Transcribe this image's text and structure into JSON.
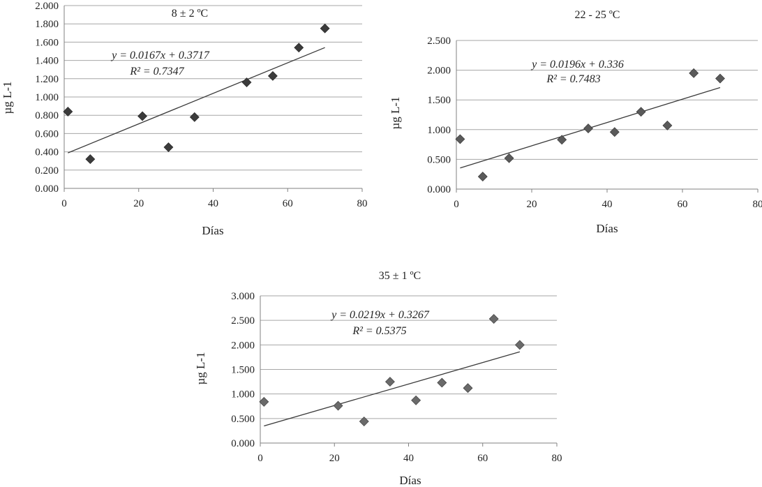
{
  "chart_data": [
    {
      "type": "scatter",
      "title": "8 ± 2 ºC",
      "xlabel": "Días",
      "ylabel": "µg L-1",
      "xlim": [
        0,
        80
      ],
      "ylim": [
        0,
        2.0
      ],
      "x_ticks": [
        "0",
        "20",
        "40",
        "60",
        "80"
      ],
      "y_ticks": [
        "0.000",
        "0.200",
        "0.400",
        "0.600",
        "0.800",
        "1.000",
        "1.200",
        "1.400",
        "1.600",
        "1.800",
        "2.000"
      ],
      "grid": true,
      "points": [
        {
          "x": 1,
          "y": 0.84
        },
        {
          "x": 7,
          "y": 0.32
        },
        {
          "x": 21,
          "y": 0.79
        },
        {
          "x": 28,
          "y": 0.45
        },
        {
          "x": 35,
          "y": 0.78
        },
        {
          "x": 49,
          "y": 1.16
        },
        {
          "x": 56,
          "y": 1.23
        },
        {
          "x": 63,
          "y": 1.54
        },
        {
          "x": 70,
          "y": 1.75
        }
      ],
      "trendline": {
        "slope": 0.0167,
        "intercept": 0.3717,
        "x_range": [
          1,
          70
        ]
      },
      "equation": "y = 0.0167x + 0.3717",
      "r2_label": "R² = 0.7347"
    },
    {
      "type": "scatter",
      "title": "22 - 25 ºC",
      "xlabel": "Días",
      "ylabel": "µg L-1",
      "xlim": [
        0,
        80
      ],
      "ylim": [
        0,
        2.5
      ],
      "x_ticks": [
        "0",
        "20",
        "40",
        "60",
        "80"
      ],
      "y_ticks": [
        "0.000",
        "0.500",
        "1.000",
        "1.500",
        "2.000",
        "2.500"
      ],
      "grid": true,
      "points": [
        {
          "x": 1,
          "y": 0.84
        },
        {
          "x": 7,
          "y": 0.21
        },
        {
          "x": 14,
          "y": 0.52
        },
        {
          "x": 28,
          "y": 0.83
        },
        {
          "x": 35,
          "y": 1.02
        },
        {
          "x": 42,
          "y": 0.96
        },
        {
          "x": 49,
          "y": 1.3
        },
        {
          "x": 56,
          "y": 1.07
        },
        {
          "x": 63,
          "y": 1.95
        },
        {
          "x": 70,
          "y": 1.86
        }
      ],
      "trendline": {
        "slope": 0.0196,
        "intercept": 0.336,
        "x_range": [
          1,
          70
        ]
      },
      "equation": "y = 0.0196x + 0.336",
      "r2_label": "R² = 0.7483"
    },
    {
      "type": "scatter",
      "title": "35 ± 1 ºC",
      "xlabel": "Días",
      "ylabel": "µg L-1",
      "xlim": [
        0,
        80
      ],
      "ylim": [
        0,
        3.0
      ],
      "x_ticks": [
        "0",
        "20",
        "40",
        "60",
        "80"
      ],
      "y_ticks": [
        "0.000",
        "0.500",
        "1.000",
        "1.500",
        "2.000",
        "2.500",
        "3.000"
      ],
      "grid": true,
      "points": [
        {
          "x": 1,
          "y": 0.84
        },
        {
          "x": 21,
          "y": 0.76
        },
        {
          "x": 28,
          "y": 0.44
        },
        {
          "x": 35,
          "y": 1.25
        },
        {
          "x": 42,
          "y": 0.87
        },
        {
          "x": 49,
          "y": 1.23
        },
        {
          "x": 56,
          "y": 1.12
        },
        {
          "x": 63,
          "y": 2.53
        },
        {
          "x": 70,
          "y": 2.0
        }
      ],
      "trendline": {
        "slope": 0.0219,
        "intercept": 0.3267,
        "x_range": [
          1,
          70
        ]
      },
      "equation": "y = 0.0219x + 0.3267",
      "r2_label": "R² = 0.5375"
    }
  ]
}
